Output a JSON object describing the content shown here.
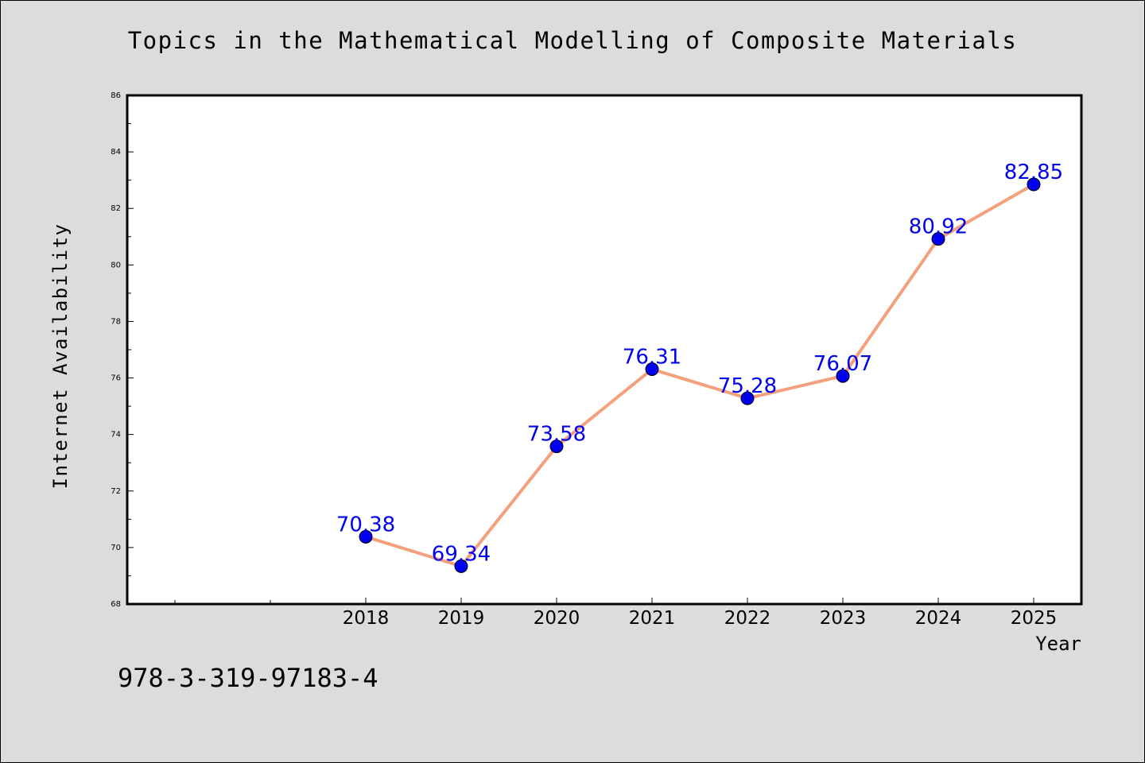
{
  "chart_data": {
    "type": "line",
    "title": "Topics in the Mathematical Modelling of Composite Materials",
    "xlabel": "Year",
    "ylabel": "Internet Availability",
    "x": [
      "2018",
      "2019",
      "2020",
      "2021",
      "2022",
      "2023",
      "2024",
      "2025"
    ],
    "series": [
      {
        "values": [
          70.38,
          69.34,
          73.58,
          76.31,
          75.28,
          76.07,
          80.92,
          82.85
        ],
        "labels": [
          "70.38",
          "69.34",
          "73.58",
          "76.31",
          "75.28",
          "76.07",
          "80.92",
          "82.85"
        ],
        "line_color": "#f4a07c",
        "marker_color": "#0000ee",
        "label_color": "#0000ee"
      }
    ],
    "ylim": [
      68,
      86
    ],
    "yticks": [
      "68",
      "70",
      "72",
      "74",
      "76",
      "78",
      "80",
      "82",
      "84",
      "86"
    ],
    "grid": false,
    "legend": "none"
  },
  "annotation": "978-3-319-97183-4",
  "colors": {
    "background": "#dcdcdc",
    "plot_area": "#ffffff"
  }
}
